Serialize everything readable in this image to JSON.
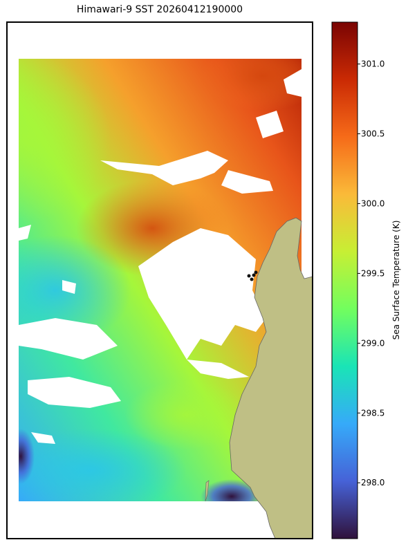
{
  "chart_data": {
    "type": "map",
    "title": "Himawari-9 SST 20260412190000",
    "colorbar": {
      "label": "Sea Surface Temperature (K)",
      "lim": [
        297.6,
        301.3
      ],
      "ticks": [
        {
          "value": 298,
          "label": "298.0"
        },
        {
          "value": 298.5,
          "label": "298.5"
        },
        {
          "value": 299,
          "label": "299.0"
        },
        {
          "value": 299.5,
          "label": "299.5"
        },
        {
          "value": 300,
          "label": "300.0"
        },
        {
          "value": 300.5,
          "label": "300.5"
        },
        {
          "value": 301,
          "label": "301.0"
        }
      ],
      "colors": [
        "#30123b",
        "#4662d7",
        "#36aaf9",
        "#1ae4b6",
        "#72fe5e",
        "#c7ef34",
        "#faba39",
        "#f66b19",
        "#ca2a04",
        "#7a0403"
      ]
    }
  }
}
